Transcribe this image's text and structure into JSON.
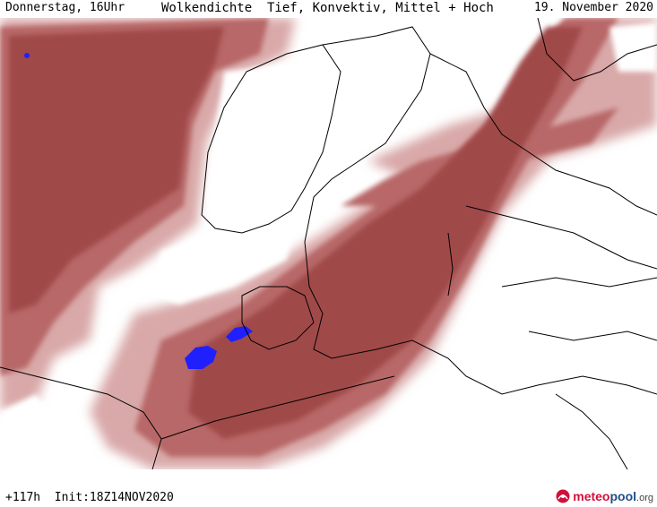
{
  "header": {
    "day_time": "Donnerstag, 16Uhr",
    "title": "Wolkendichte  Tief, Konvektiv, Mittel + Hoch",
    "date": "19. November 2020"
  },
  "footer": {
    "run_info": "+117h  Init:18Z14NOV2020"
  },
  "logo": {
    "part1": "meteo",
    "part2": "pool",
    "part3": ".org"
  },
  "colors": {
    "cloud_dense": "#a04848",
    "cloud_medium": "#b86868",
    "cloud_light": "#d9a8a8",
    "convective": "#2020ff",
    "coastline": "#000000",
    "logo_red": "#d0103a",
    "logo_blue": "#1f4e8c"
  }
}
